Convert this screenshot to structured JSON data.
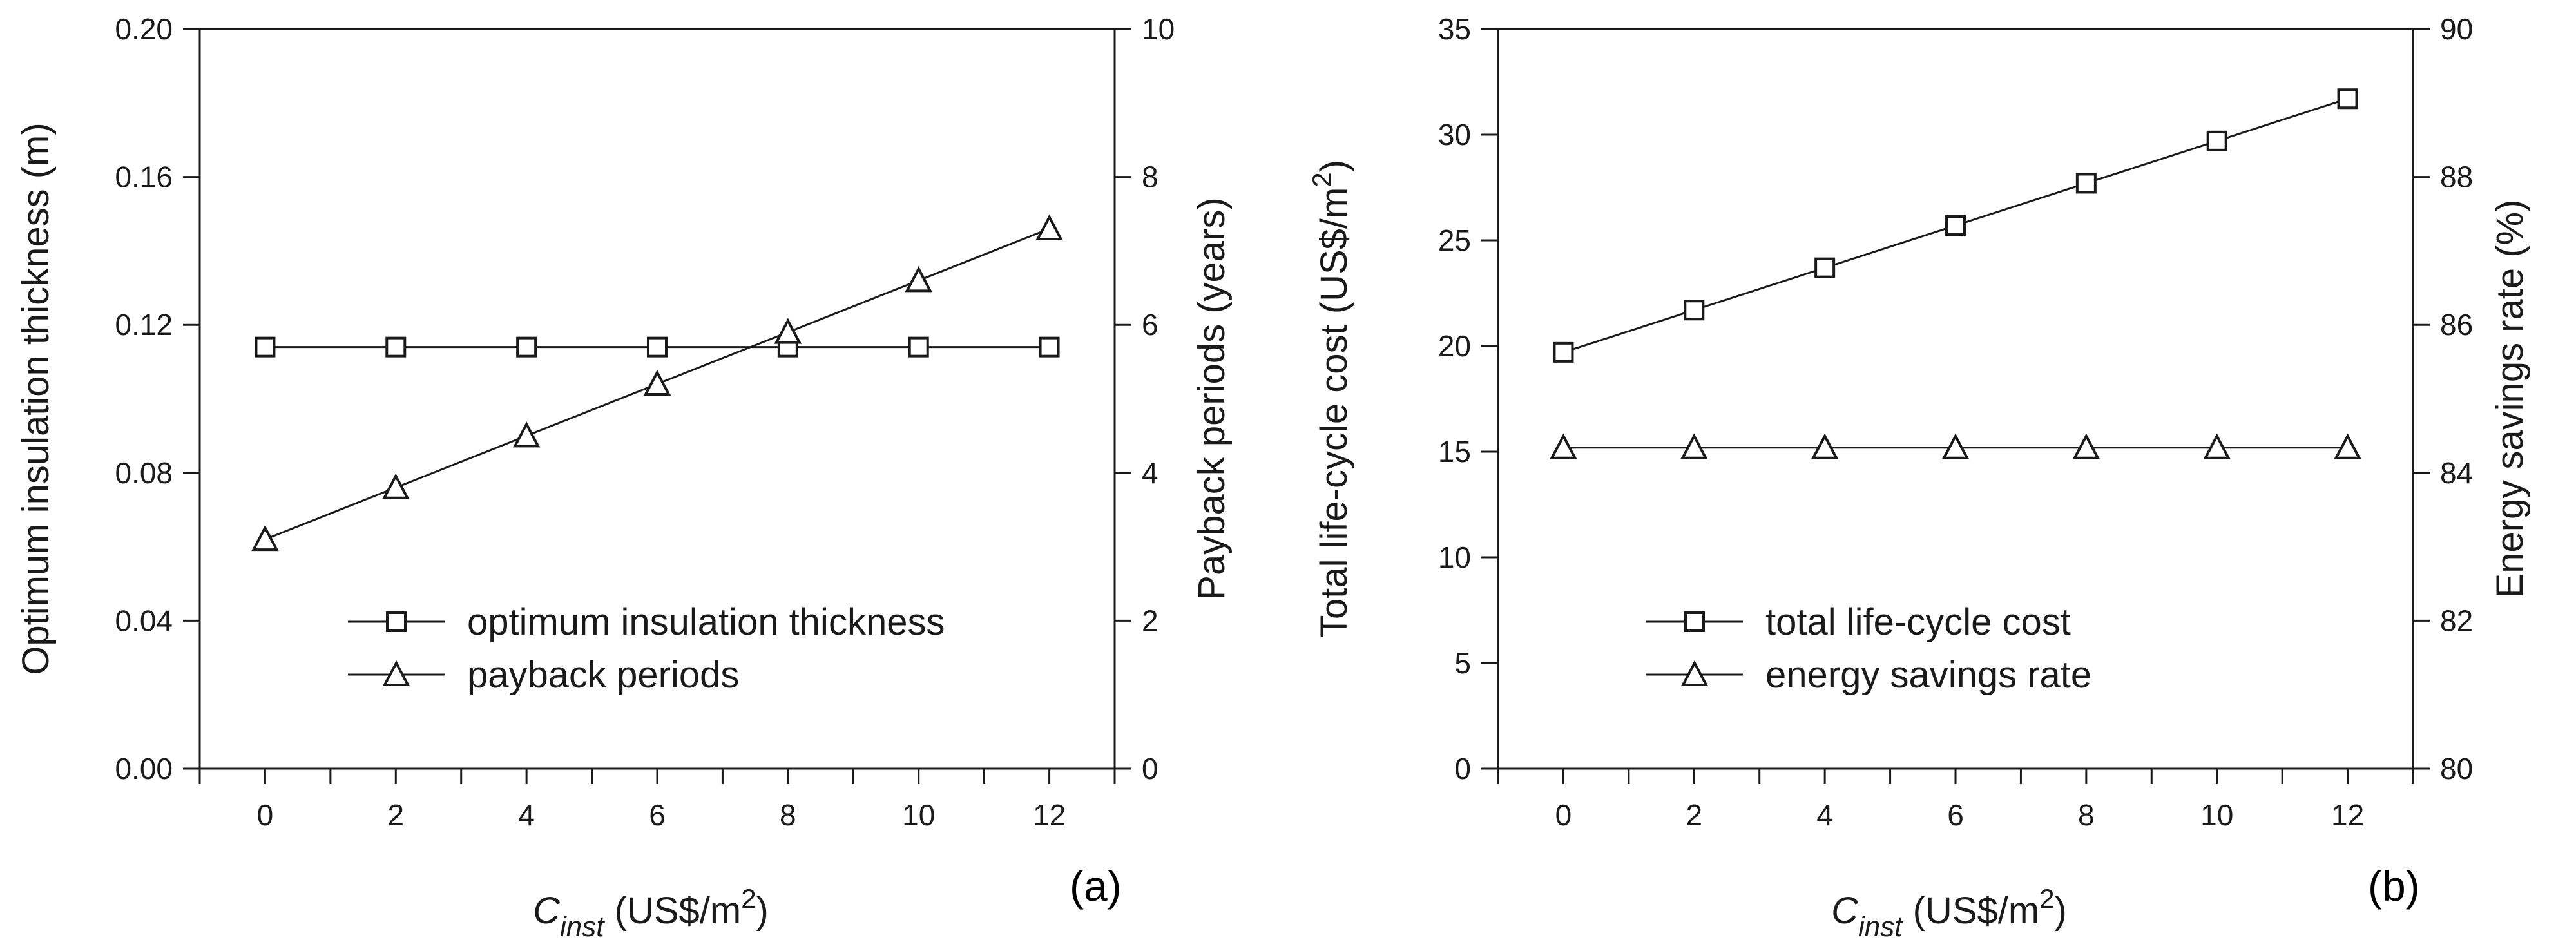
{
  "chart_data": [
    {
      "type": "line",
      "panel_label": "(a)",
      "x": [
        0,
        2,
        4,
        6,
        8,
        10,
        12
      ],
      "x_ticks": [
        "0",
        "2",
        "4",
        "6",
        "8",
        "10",
        "12"
      ],
      "xlim": [
        -1,
        13
      ],
      "xlabel": {
        "main": "C",
        "sub": "inst",
        "unit": " (US$/m",
        "sup": "2",
        "close": ")"
      },
      "ylabel_left": "Optimum insulation thickness (m)",
      "ylabel_right": "Payback periods (years)",
      "ylim_left": [
        0,
        0.2
      ],
      "ylim_right": [
        0,
        10
      ],
      "left_ticks": [
        "0.00",
        "0.04",
        "0.08",
        "0.12",
        "0.16",
        "0.20"
      ],
      "right_ticks": [
        "0",
        "2",
        "4",
        "6",
        "8",
        "10"
      ],
      "legend_position": "lower-center",
      "series": [
        {
          "name": "optimum insulation thickness",
          "marker": "square",
          "axis": "left",
          "values": [
            0.114,
            0.114,
            0.114,
            0.114,
            0.114,
            0.114,
            0.114
          ]
        },
        {
          "name": "payback periods",
          "marker": "triangle",
          "axis": "right",
          "values": [
            3.1,
            3.8,
            4.5,
            5.2,
            5.9,
            6.6,
            7.3
          ]
        }
      ]
    },
    {
      "type": "line",
      "panel_label": "(b)",
      "x": [
        0,
        2,
        4,
        6,
        8,
        10,
        12
      ],
      "x_ticks": [
        "0",
        "2",
        "4",
        "6",
        "8",
        "10",
        "12"
      ],
      "xlim": [
        -1,
        13
      ],
      "xlabel": {
        "main": "C",
        "sub": "inst",
        "unit": " (US$/m",
        "sup": "2",
        "close": ")"
      },
      "ylabel_left": {
        "text": "Total life-cycle cost (US$/m",
        "sup": "2",
        "close": ")"
      },
      "ylabel_right": "Energy savings rate (%)",
      "ylim_left": [
        0,
        35
      ],
      "ylim_right": [
        80,
        90
      ],
      "left_ticks": [
        "0",
        "5",
        "10",
        "15",
        "20",
        "25",
        "30",
        "35"
      ],
      "right_ticks": [
        "80",
        "82",
        "84",
        "86",
        "88",
        "90"
      ],
      "legend_position": "lower-center",
      "series": [
        {
          "name": "total life-cycle cost",
          "marker": "square",
          "axis": "left",
          "values": [
            19.7,
            21.7,
            23.7,
            25.7,
            27.7,
            29.7,
            31.7
          ]
        },
        {
          "name": "energy savings rate",
          "marker": "triangle",
          "axis": "right",
          "values": [
            84.34,
            84.34,
            84.34,
            84.34,
            84.34,
            84.34,
            84.34
          ]
        }
      ]
    }
  ]
}
